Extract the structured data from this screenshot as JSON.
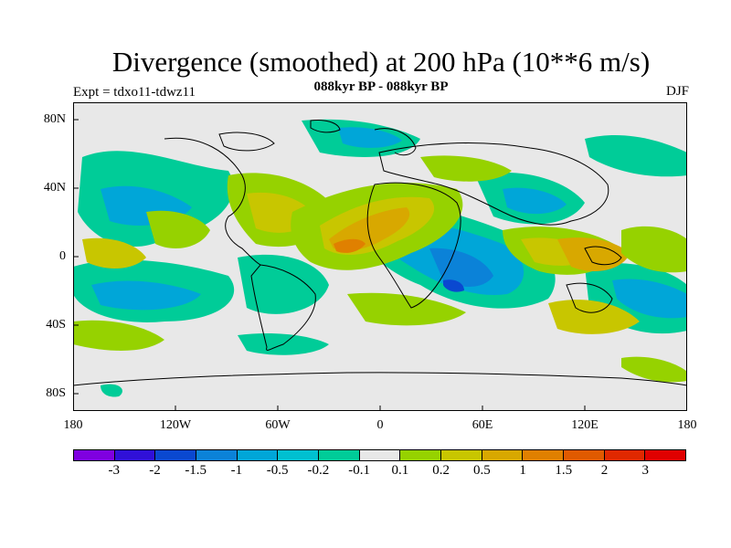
{
  "title": "Divergence (smoothed) at 200 hPa (10**6 m/s)",
  "subtitle": "088kyr BP - 088kyr BP",
  "experiment": "Expt = tdxo11-tdwz11",
  "season": "DJF",
  "y_ticks": [
    "80N",
    "40N",
    "0",
    "40S",
    "80S"
  ],
  "x_ticks": [
    "180",
    "120W",
    "60W",
    "0",
    "60E",
    "120E",
    "180"
  ],
  "colorbar": {
    "colors": [
      "#7f00e0",
      "#3010d8",
      "#0a48d0",
      "#0b82d8",
      "#00a6d8",
      "#00c0d0",
      "#00cc98",
      "#e8e8e8",
      "#96d200",
      "#c8c600",
      "#d8a800",
      "#e08000",
      "#e05a00",
      "#e02800",
      "#e00000"
    ],
    "labels": [
      "-3",
      "-2",
      "-1.5",
      "-1",
      "-0.5",
      "-0.2",
      "-0.1",
      "0.1",
      "0.2",
      "0.5",
      "1",
      "1.5",
      "2",
      "3"
    ]
  },
  "map_colors": {
    "ocean_bg": "#e8e8e8",
    "coast": "#000000"
  }
}
